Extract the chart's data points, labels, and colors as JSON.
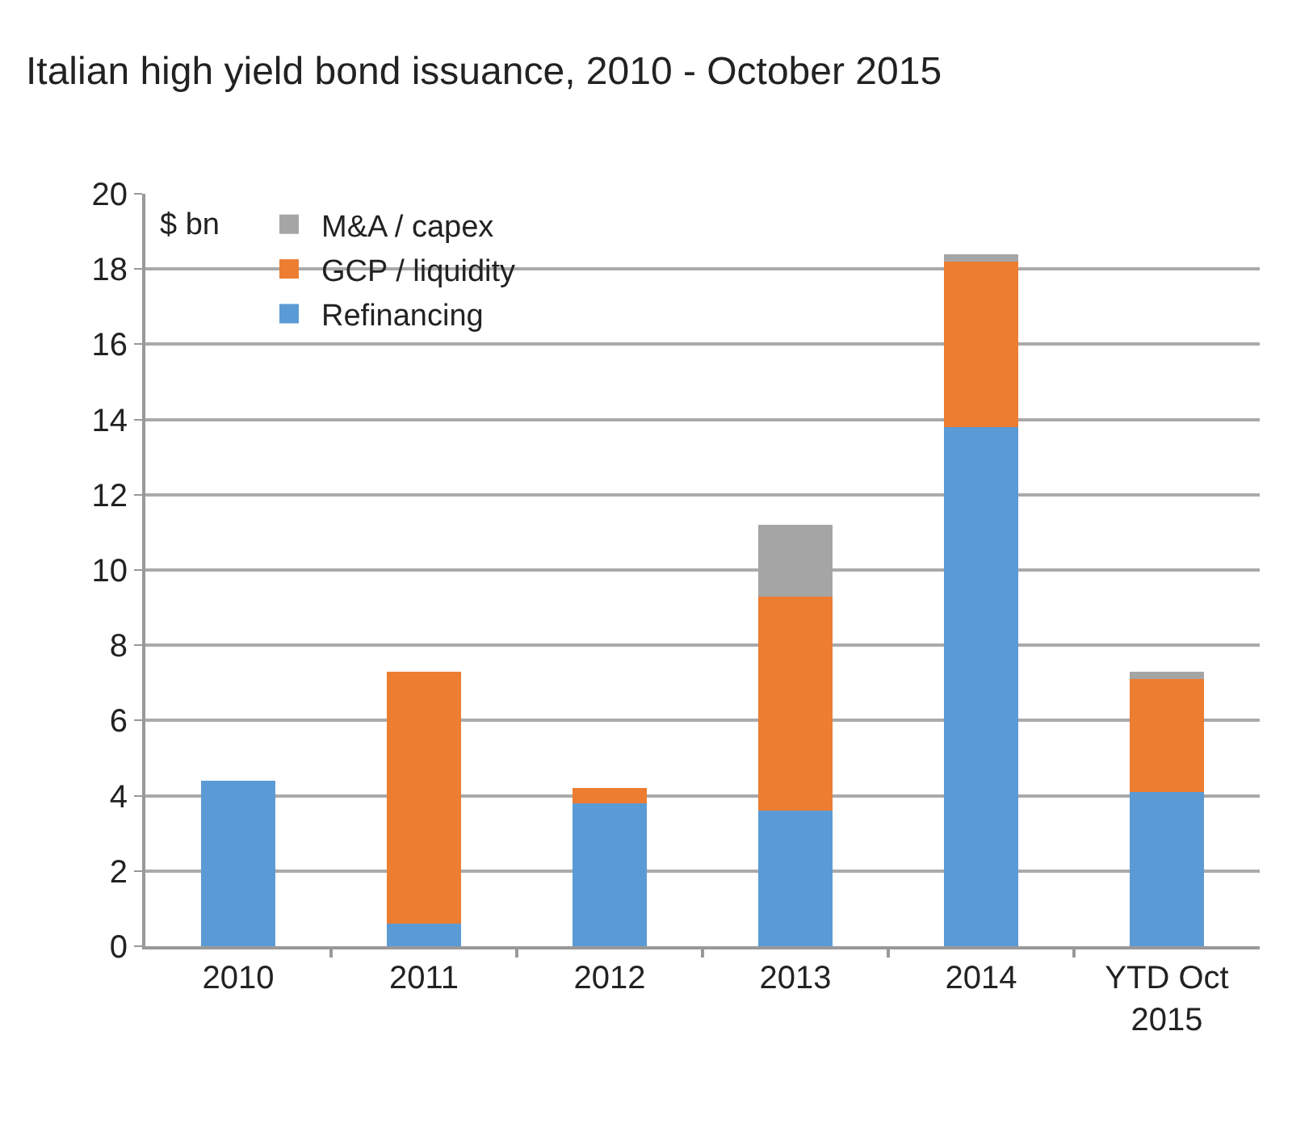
{
  "chart_data": {
    "type": "bar",
    "title": "Italian high yield bond issuance, 2010 - October 2015",
    "ylabel": "$ bn",
    "categories": [
      "2010",
      "2011",
      "2012",
      "2013",
      "2014",
      "YTD Oct 2015"
    ],
    "stacked": true,
    "series": [
      {
        "name": "Refinancing",
        "color": "#5b9bd5",
        "values": [
          4.4,
          0.6,
          3.8,
          3.6,
          13.8,
          4.1
        ]
      },
      {
        "name": "GCP / liquidity",
        "color": "#ed7d31",
        "values": [
          0,
          6.7,
          0.4,
          5.7,
          4.4,
          3.0
        ]
      },
      {
        "name": "M&A / capex",
        "color": "#a5a5a5",
        "values": [
          0,
          0,
          0,
          1.9,
          0.2,
          0.2
        ]
      }
    ],
    "ylim": [
      0,
      20
    ],
    "yticks": [
      0,
      2,
      4,
      6,
      8,
      10,
      12,
      14,
      16,
      18,
      20
    ],
    "grid": "y",
    "legend": "top left"
  }
}
